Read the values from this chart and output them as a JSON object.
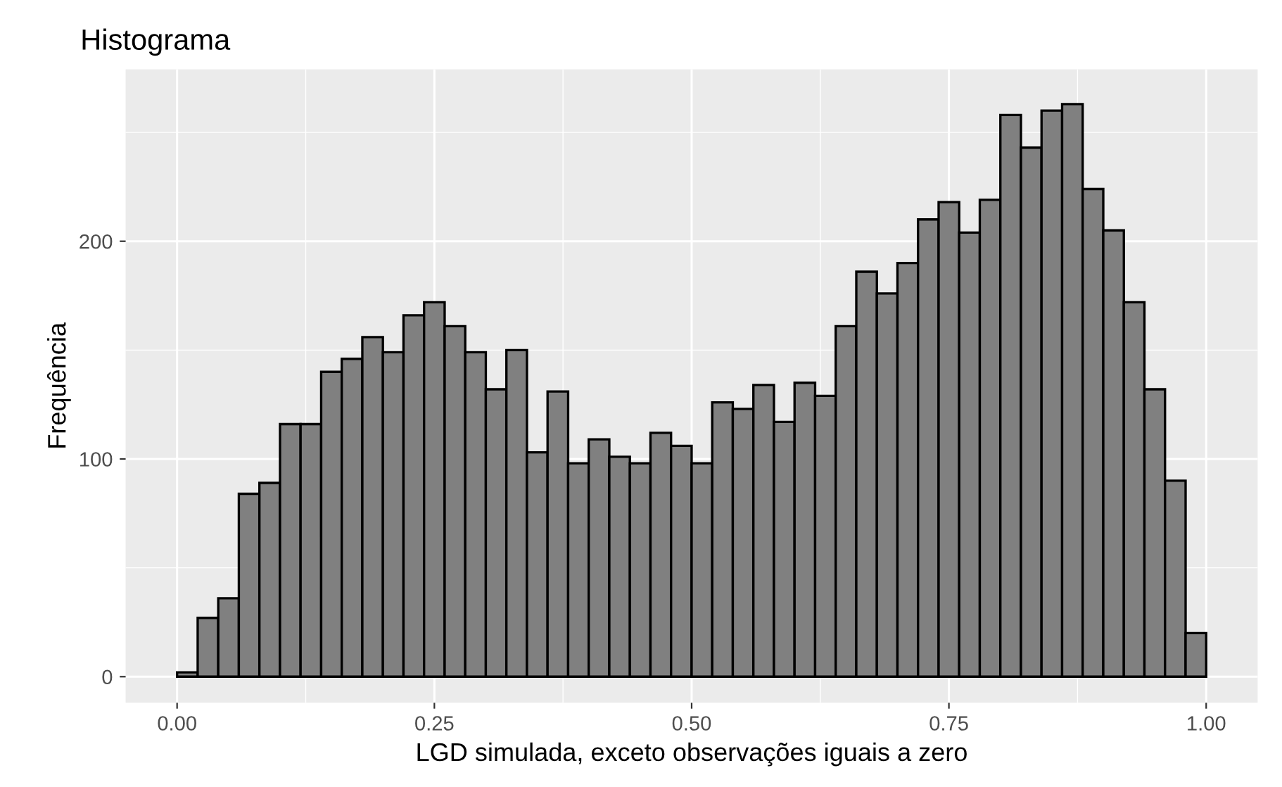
{
  "chart_data": {
    "type": "histogram",
    "title": "Histograma",
    "xlabel": "LGD simulada, exceto observações iguais a zero",
    "ylabel": "Frequência",
    "bins": [
      0.0,
      0.02,
      0.04,
      0.06,
      0.08,
      0.1,
      0.12,
      0.14,
      0.16,
      0.18,
      0.2,
      0.22,
      0.24,
      0.26,
      0.28,
      0.3,
      0.32,
      0.34,
      0.36,
      0.38,
      0.4,
      0.42,
      0.44,
      0.46,
      0.48,
      0.5,
      0.52,
      0.54,
      0.56,
      0.58,
      0.6,
      0.62,
      0.64,
      0.66,
      0.68,
      0.7,
      0.72,
      0.74,
      0.76,
      0.78,
      0.8,
      0.82,
      0.84,
      0.86,
      0.88,
      0.9,
      0.92,
      0.94,
      0.96,
      0.98,
      1.0
    ],
    "values": [
      2,
      27,
      36,
      84,
      89,
      116,
      116,
      140,
      146,
      156,
      149,
      166,
      172,
      161,
      149,
      132,
      150,
      103,
      131,
      98,
      109,
      101,
      98,
      112,
      106,
      98,
      126,
      123,
      134,
      117,
      135,
      129,
      161,
      186,
      176,
      190,
      210,
      218,
      204,
      219,
      258,
      243,
      260,
      263,
      224,
      205,
      172,
      132,
      90,
      20
    ],
    "color": "#808080",
    "xlim": [
      -0.05,
      1.05
    ],
    "ylim": [
      -12,
      279
    ],
    "xticks": [
      {
        "value": 0,
        "label": "0.00"
      },
      {
        "value": 0.25,
        "label": "0.25"
      },
      {
        "value": 0.5,
        "label": "0.50"
      },
      {
        "value": 0.75,
        "label": "0.75"
      },
      {
        "value": 1,
        "label": "1.00"
      }
    ],
    "yticks": [
      0,
      100,
      200
    ],
    "grid": true
  }
}
